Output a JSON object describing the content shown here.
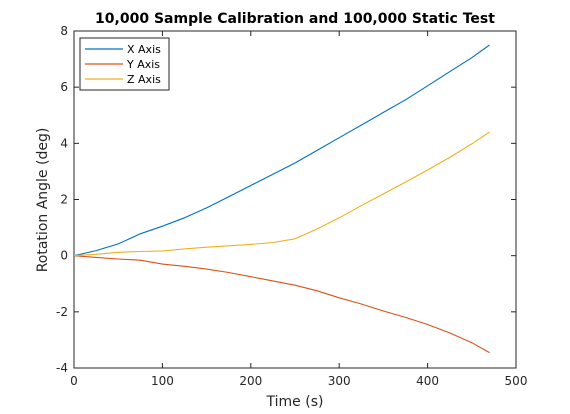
{
  "chart_data": {
    "type": "line",
    "title": "10,000 Sample Calibration and 100,000 Static Test",
    "xlabel": "Time (s)",
    "ylabel": "Rotation Angle (deg)",
    "xlim": [
      0,
      500
    ],
    "ylim": [
      -4,
      8
    ],
    "xticks": [
      0,
      100,
      200,
      300,
      400,
      500
    ],
    "yticks": [
      -4,
      -2,
      0,
      2,
      4,
      6,
      8
    ],
    "xtick_labels": [
      "0",
      "100",
      "200",
      "300",
      "400",
      "500"
    ],
    "ytick_labels": [
      "-4",
      "-2",
      "0",
      "2",
      "4",
      "6",
      "8"
    ],
    "grid": false,
    "legend_position": "top-left",
    "series": [
      {
        "name": "X Axis",
        "color": "#0072BD",
        "x": [
          0,
          25,
          50,
          75,
          100,
          125,
          150,
          175,
          200,
          225,
          250,
          275,
          300,
          325,
          350,
          375,
          400,
          425,
          450,
          470
        ],
        "y": [
          0,
          0.18,
          0.42,
          0.78,
          1.05,
          1.35,
          1.7,
          2.1,
          2.5,
          2.9,
          3.3,
          3.75,
          4.2,
          4.65,
          5.1,
          5.55,
          6.05,
          6.55,
          7.05,
          7.5
        ]
      },
      {
        "name": "Y Axis",
        "color": "#D95319",
        "x": [
          0,
          25,
          50,
          75,
          100,
          125,
          150,
          175,
          200,
          225,
          250,
          275,
          300,
          325,
          350,
          375,
          400,
          425,
          450,
          470
        ],
        "y": [
          0,
          -0.06,
          -0.12,
          -0.16,
          -0.3,
          -0.38,
          -0.48,
          -0.6,
          -0.75,
          -0.9,
          -1.05,
          -1.25,
          -1.5,
          -1.72,
          -1.97,
          -2.2,
          -2.45,
          -2.75,
          -3.1,
          -3.45
        ]
      },
      {
        "name": "Z Axis",
        "color": "#EDB120",
        "x": [
          0,
          25,
          50,
          75,
          100,
          125,
          150,
          175,
          200,
          225,
          250,
          275,
          300,
          325,
          350,
          375,
          400,
          425,
          450,
          470
        ],
        "y": [
          0,
          0.05,
          0.12,
          0.15,
          0.17,
          0.24,
          0.3,
          0.35,
          0.4,
          0.47,
          0.6,
          0.95,
          1.35,
          1.78,
          2.2,
          2.62,
          3.05,
          3.5,
          3.98,
          4.4
        ]
      }
    ]
  }
}
